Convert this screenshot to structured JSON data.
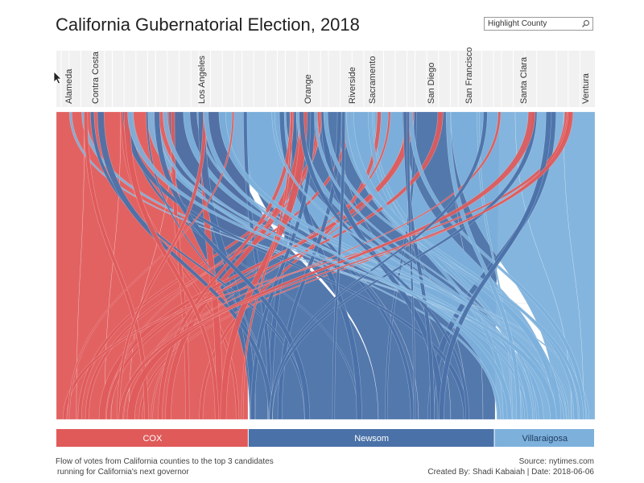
{
  "title": "California Gubernatorial Election, 2018",
  "search": {
    "placeholder": "Highlight County",
    "icon": "search-icon"
  },
  "colors": {
    "cox": "#e05a5a",
    "newsom": "#4a71a8",
    "villaraigosa": "#7db1dc"
  },
  "chart_data": {
    "type": "sankey",
    "title": "California Gubernatorial Election, 2018",
    "counties": [
      "Alameda",
      "Contra Costa",
      "Los Angeles",
      "Orange",
      "Riverside",
      "Sacramento",
      "San Diego",
      "San Francisco",
      "Santa Clara",
      "Ventura"
    ],
    "candidates": [
      {
        "name": "COX",
        "share": 0.357,
        "color": "#e05a5a"
      },
      {
        "name": "Newsom",
        "share": 0.457,
        "color": "#4a71a8"
      },
      {
        "name": "Villaraigosa",
        "share": 0.186,
        "color": "#7db1dc"
      }
    ]
  },
  "footer": {
    "description_line1": "Flow of votes from California counties to the top 3 candidates",
    "description_line2": "running for California's next governor",
    "source": "Source: nytimes.com",
    "credit": "Created By: Shadi Kabaiah | Date: 2018-06-06"
  }
}
